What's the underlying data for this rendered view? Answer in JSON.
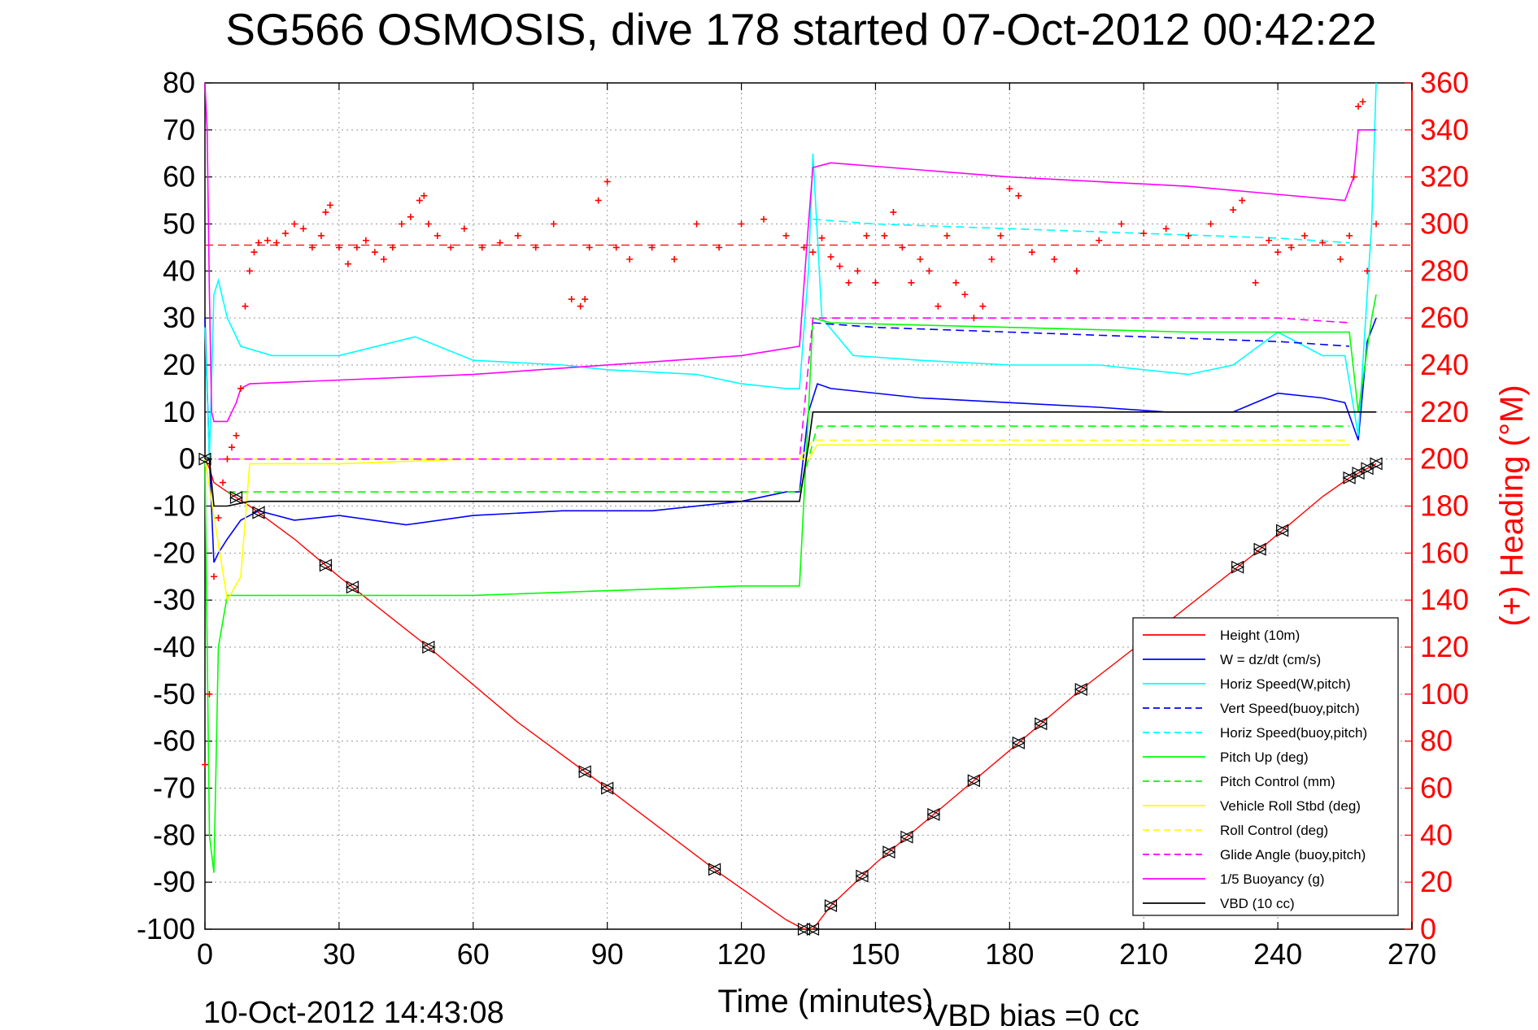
{
  "chart_data": {
    "type": "line",
    "title": "SG566 OSMOSIS, dive 178 started 07-Oct-2012 00:42:22",
    "xlabel": "Time (minutes)",
    "ylabel": "",
    "y2label": "(+) Heading (°M)",
    "timestamp": "10-Oct-2012 14:43:08",
    "footnote": "VBD bias =0 cc",
    "xlim": [
      0,
      270
    ],
    "ylim": [
      -100,
      80
    ],
    "y2lim": [
      0,
      360
    ],
    "xticks": [
      "0",
      "30",
      "60",
      "90",
      "120",
      "150",
      "180",
      "210",
      "240",
      "270"
    ],
    "yticks": [
      "80",
      "70",
      "60",
      "50",
      "40",
      "30",
      "20",
      "10",
      "0",
      "-10",
      "-20",
      "-30",
      "-40",
      "-50",
      "-60",
      "-70",
      "-80",
      "-90",
      "-100"
    ],
    "y2ticks": [
      "360",
      "340",
      "320",
      "300",
      "280",
      "260",
      "240",
      "220",
      "200",
      "180",
      "160",
      "140",
      "120",
      "100",
      "80",
      "60",
      "40",
      "20",
      "0"
    ],
    "grid": true,
    "legend_position": "bottom-right",
    "heading_reference": 291,
    "series": [
      {
        "name": "Height (10m)",
        "color": "#ff0000",
        "dash": "solid",
        "x": [
          0,
          1,
          2,
          5,
          10,
          20,
          30,
          50,
          70,
          90,
          115,
          130,
          134,
          136,
          140,
          150,
          165,
          180,
          196,
          215,
          235,
          250,
          256,
          258,
          260,
          262
        ],
        "y": [
          0,
          -2,
          -5,
          -7,
          -10,
          -17,
          -25,
          -40,
          -56,
          -70,
          -88,
          -98,
          -100,
          -100,
          -95,
          -86,
          -74,
          -62,
          -49,
          -35,
          -20,
          -8,
          -4,
          -3,
          -2,
          -1
        ]
      },
      {
        "name": "W = dz/dt (cm/s)",
        "color": "#0000ff",
        "dash": "solid",
        "x": [
          0,
          1,
          2,
          3,
          5,
          8,
          12,
          20,
          30,
          45,
          60,
          80,
          100,
          120,
          130,
          133,
          135,
          137,
          140,
          160,
          180,
          200,
          215,
          230,
          240,
          250,
          255,
          258,
          260,
          262
        ],
        "y": [
          30,
          0,
          -22,
          -20,
          -17,
          -13,
          -11,
          -13,
          -12,
          -14,
          -12,
          -11,
          -11,
          -9,
          -7,
          -7,
          10,
          16,
          15,
          13,
          12,
          11,
          10,
          10,
          14,
          13,
          12,
          4,
          25,
          30
        ]
      },
      {
        "name": "Horiz Speed(W,pitch)",
        "color": "#00ffff",
        "dash": "solid",
        "x": [
          0,
          1,
          2,
          3,
          5,
          8,
          15,
          30,
          47,
          60,
          80,
          90,
          110,
          120,
          130,
          133,
          135,
          136,
          138,
          145,
          160,
          180,
          200,
          220,
          230,
          240,
          250,
          255,
          258,
          261,
          262
        ],
        "y": [
          28,
          0,
          35,
          38,
          30,
          24,
          22,
          22,
          26,
          21,
          20,
          19,
          18,
          16,
          15,
          15,
          40,
          65,
          30,
          22,
          21,
          20,
          20,
          18,
          20,
          27,
          22,
          22,
          5,
          50,
          80
        ]
      },
      {
        "name": "Vert Speed(buoy,pitch)",
        "color": "#0000ff",
        "dash": "dashed",
        "x": [
          136,
          150,
          180,
          210,
          240,
          256
        ],
        "y": [
          29,
          28,
          27,
          26,
          25,
          24
        ]
      },
      {
        "name": "Horiz Speed(buoy,pitch)",
        "color": "#00ffff",
        "dash": "dashed",
        "x": [
          136,
          150,
          180,
          210,
          240,
          256
        ],
        "y": [
          51,
          50,
          49,
          48,
          47,
          46
        ]
      },
      {
        "name": "Pitch Up (deg)",
        "color": "#00ff00",
        "dash": "solid",
        "x": [
          0,
          1,
          2,
          3,
          5,
          10,
          30,
          60,
          90,
          120,
          133,
          135,
          136,
          140,
          180,
          220,
          256,
          258,
          261,
          262
        ],
        "y": [
          0,
          -80,
          -88,
          -40,
          -29,
          -29,
          -29,
          -29,
          -28,
          -27,
          -27,
          10,
          30,
          29,
          28,
          27,
          27,
          10,
          30,
          35
        ]
      },
      {
        "name": "Pitch Control (mm)",
        "color": "#00ff00",
        "dash": "dashed",
        "x": [
          5,
          133,
          135,
          137,
          256
        ],
        "y": [
          -7,
          -7,
          0,
          7,
          7
        ]
      },
      {
        "name": "Vehicle Roll Stbd (deg)",
        "color": "#ffff00",
        "dash": "solid",
        "x": [
          0,
          5,
          8,
          10,
          30,
          60,
          90,
          120,
          133,
          135,
          137,
          150,
          180,
          210,
          240,
          256
        ],
        "y": [
          0,
          -30,
          -25,
          -1,
          -1,
          0,
          0,
          0,
          0,
          0,
          3,
          3,
          3,
          3,
          3,
          3
        ]
      },
      {
        "name": "Roll Control (deg)",
        "color": "#ffff00",
        "dash": "dashed",
        "x": [
          5,
          30,
          60,
          90,
          120,
          133,
          136,
          180,
          256
        ],
        "y": [
          0,
          0,
          0,
          0,
          0,
          0,
          4,
          4,
          4
        ]
      },
      {
        "name": "Glide Angle (buoy,pitch)",
        "color": "#ff00ff",
        "dash": "dashed",
        "x": [
          3,
          30,
          60,
          90,
          120,
          133,
          136,
          180,
          240,
          256
        ],
        "y": [
          0,
          0,
          0,
          0,
          0,
          0,
          30,
          30,
          30,
          29
        ]
      },
      {
        "name": "1/5 Buoyancy (g)",
        "color": "#ff00ff",
        "dash": "solid",
        "x": [
          0,
          0.5,
          1,
          1.5,
          2,
          5,
          7,
          8,
          10,
          60,
          120,
          133,
          135,
          136,
          140,
          180,
          220,
          255,
          257,
          258,
          262
        ],
        "y": [
          80,
          70,
          35,
          10,
          8,
          8,
          12,
          15,
          16,
          18,
          22,
          24,
          50,
          62,
          63,
          60,
          58,
          55,
          60,
          70,
          70
        ]
      },
      {
        "name": "VBD (10 cc)",
        "color": "#000000",
        "dash": "solid",
        "x": [
          0,
          1,
          2,
          5,
          10,
          60,
          120,
          133,
          135,
          136,
          140,
          200,
          256,
          262
        ],
        "y": [
          0,
          0,
          -10,
          -10,
          -9,
          -9,
          -9,
          -9,
          3,
          10,
          10,
          10,
          10,
          10
        ]
      }
    ],
    "heading": {
      "name": "Heading (°M)",
      "axis": "right",
      "color": "#ff0000",
      "marker": "+",
      "x": [
        0,
        1,
        2,
        3,
        4,
        5,
        6,
        7,
        8,
        9,
        10,
        11,
        12,
        14,
        16,
        18,
        20,
        22,
        24,
        26,
        27,
        28,
        30,
        32,
        34,
        36,
        38,
        40,
        42,
        44,
        46,
        48,
        49,
        50,
        52,
        55,
        58,
        62,
        66,
        70,
        74,
        78,
        82,
        84,
        85,
        86,
        88,
        90,
        92,
        95,
        100,
        105,
        110,
        115,
        120,
        125,
        130,
        134,
        136,
        138,
        140,
        142,
        144,
        146,
        148,
        150,
        152,
        154,
        156,
        158,
        160,
        162,
        164,
        166,
        168,
        170,
        172,
        174,
        176,
        178,
        180,
        182,
        185,
        190,
        195,
        200,
        205,
        210,
        215,
        220,
        225,
        230,
        232,
        235,
        238,
        240,
        243,
        246,
        250,
        254,
        256,
        257,
        258,
        259,
        260,
        262
      ],
      "y": [
        70,
        100,
        150,
        175,
        190,
        200,
        205,
        210,
        230,
        265,
        280,
        288,
        292,
        293,
        292,
        296,
        300,
        298,
        290,
        295,
        305,
        308,
        290,
        283,
        290,
        293,
        288,
        285,
        290,
        300,
        303,
        310,
        312,
        300,
        295,
        290,
        298,
        290,
        292,
        295,
        290,
        300,
        268,
        265,
        268,
        290,
        310,
        318,
        290,
        285,
        290,
        285,
        300,
        290,
        300,
        302,
        295,
        290,
        288,
        294,
        286,
        282,
        275,
        280,
        295,
        275,
        295,
        305,
        290,
        275,
        285,
        280,
        265,
        295,
        275,
        270,
        260,
        265,
        285,
        295,
        315,
        312,
        288,
        285,
        280,
        293,
        300,
        296,
        298,
        295,
        300,
        306,
        310,
        275,
        293,
        288,
        290,
        295,
        292,
        285,
        295,
        320,
        350,
        352,
        280,
        300
      ]
    },
    "height_markers_x": [
      0,
      7,
      12,
      27,
      33,
      50,
      85,
      90,
      114,
      134,
      136,
      140,
      147,
      153,
      157,
      163,
      172,
      182,
      187,
      196,
      231,
      236,
      241,
      256,
      258,
      260,
      262
    ]
  }
}
